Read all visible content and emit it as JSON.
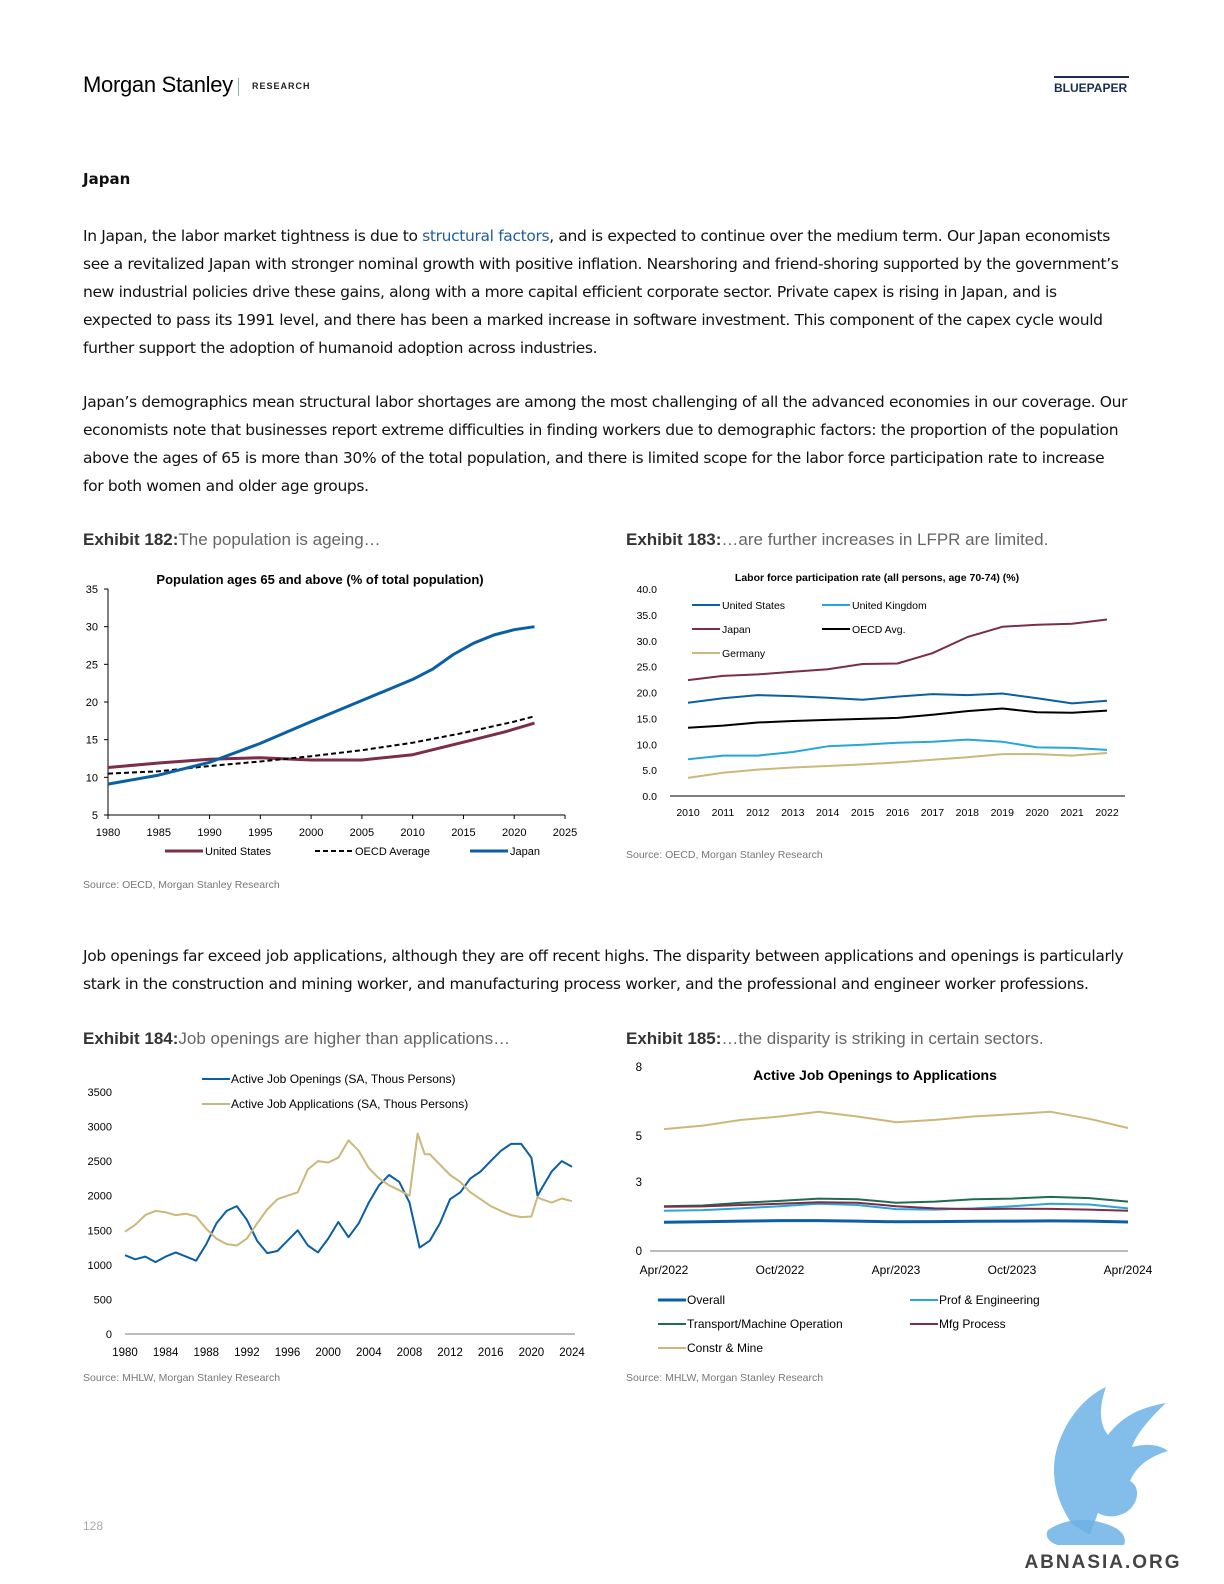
{
  "header": {
    "brand": "Morgan Stanley",
    "section": "RESEARCH",
    "doc_type": "BLUEPAPER"
  },
  "page_number": "128",
  "heading": "Japan",
  "para1": {
    "pre": "In Japan, the labor market tightness is due to ",
    "link": "structural factors",
    "post": ", and is expected to continue over the medium term. Our Japan economists see a revitalized Japan with stronger nominal growth with positive inflation. Nearshoring and friend-shoring supported by the government’s new industrial policies drive these gains, along with a more capital efficient corporate sector. Private capex is rising in Japan, and is expected to pass its 1991 level, and there has been a marked increase in software investment. This component of the capex cycle would further support the adoption of humanoid adoption across industries."
  },
  "para2": "Japan’s demographics mean structural labor shortages are among the most challenging of all the advanced economies in our coverage. Our economists note that businesses report extreme difficulties in finding workers due to demographic factors: the proportion of the population above the ages of 65 is more than 30% of the total population, and there is limited scope for the labor force participation rate to increase for both women and older age groups.",
  "para3": "Job openings far exceed job applications, although they are off recent highs. The disparity between applications and openings is particularly stark in the construction and mining worker, and manufacturing process worker, and the professional and engineer worker professions.",
  "exhibits": [
    {
      "label": "Exhibit 182:",
      "caption": "The population is ageing…",
      "source": "Source: OECD, Morgan Stanley Research"
    },
    {
      "label": "Exhibit 183:",
      "caption": "…are further increases in LFPR are limited.",
      "source": "Source: OECD, Morgan Stanley Research"
    },
    {
      "label": "Exhibit 184:",
      "caption": "Job openings are higher than applications…",
      "source": "Source: MHLW, Morgan Stanley Research"
    },
    {
      "label": "Exhibit 185:",
      "caption": "…the disparity is striking in certain sectors.",
      "source": "Source: MHLW, Morgan Stanley Research"
    }
  ],
  "watermark": "ABNASIA.ORG",
  "colors": {
    "navy": "#1a2e55",
    "us": "#7b2d4a",
    "japan": "#0b5fa5",
    "oecd": "#000000",
    "uk": "#29a6d8",
    "germany": "#cbb87a",
    "transport": "#1f6b54",
    "link": "#1f5fa0"
  },
  "chart_data": [
    {
      "type": "line",
      "title": "Population ages 65 and above (% of total population)",
      "xlim": [
        1980,
        2025
      ],
      "ylim": [
        5,
        35
      ],
      "xticks": [
        "1980",
        "1985",
        "1990",
        "1995",
        "2000",
        "2005",
        "2010",
        "2015",
        "2020",
        "2025"
      ],
      "yticks": [
        "5",
        "10",
        "15",
        "20",
        "25",
        "30",
        "35"
      ],
      "legend_position": "bottom",
      "series": [
        {
          "name": "United States",
          "color": "#7b2d4a",
          "dash": "none",
          "width": 3,
          "x": [
            1980,
            1985,
            1990,
            1995,
            2000,
            2005,
            2010,
            2013,
            2016,
            2019,
            2022
          ],
          "y": [
            11.3,
            11.9,
            12.4,
            12.6,
            12.3,
            12.3,
            13.0,
            14.0,
            15.0,
            16.0,
            17.2
          ]
        },
        {
          "name": "OECD Average",
          "color": "#000000",
          "dash": "5,3",
          "width": 2,
          "x": [
            1980,
            1985,
            1990,
            1995,
            2000,
            2005,
            2010,
            2015,
            2020,
            2022
          ],
          "y": [
            10.5,
            10.8,
            11.5,
            12.1,
            12.8,
            13.6,
            14.6,
            15.9,
            17.4,
            18.1
          ]
        },
        {
          "name": "Japan",
          "color": "#0b5fa5",
          "dash": "none",
          "width": 3,
          "x": [
            1980,
            1985,
            1990,
            1995,
            2000,
            2005,
            2010,
            2012,
            2014,
            2016,
            2018,
            2020,
            2022
          ],
          "y": [
            9.1,
            10.3,
            12.0,
            14.5,
            17.4,
            20.2,
            23.0,
            24.4,
            26.3,
            27.8,
            28.9,
            29.6,
            30.0
          ]
        }
      ]
    },
    {
      "type": "line",
      "title": "Labor force participation rate (all persons, age 70-74) (%)",
      "xlim": [
        2010,
        2022
      ],
      "ylim": [
        0,
        40
      ],
      "xticks": [
        "2010",
        "2011",
        "2012",
        "2013",
        "2014",
        "2015",
        "2016",
        "2017",
        "2018",
        "2019",
        "2020",
        "2021",
        "2022"
      ],
      "yticks": [
        "0.0",
        "5.0",
        "10.0",
        "15.0",
        "20.0",
        "25.0",
        "30.0",
        "35.0",
        "40.0"
      ],
      "legend_position": "top-left",
      "x": [
        2010,
        2011,
        2012,
        2013,
        2014,
        2015,
        2016,
        2017,
        2018,
        2019,
        2020,
        2021,
        2022
      ],
      "series": [
        {
          "name": "United States",
          "color": "#0b5fa5",
          "y": [
            18.0,
            18.9,
            19.5,
            19.3,
            19.0,
            18.6,
            19.2,
            19.7,
            19.5,
            19.8,
            18.9,
            17.9,
            18.4
          ]
        },
        {
          "name": "United Kingdom",
          "color": "#29a6d8",
          "y": [
            7.1,
            7.8,
            7.8,
            8.5,
            9.6,
            9.9,
            10.3,
            10.5,
            10.9,
            10.5,
            9.4,
            9.3,
            8.9
          ]
        },
        {
          "name": "Japan",
          "color": "#7b2d4a",
          "y": [
            22.4,
            23.2,
            23.5,
            24.0,
            24.5,
            25.5,
            25.6,
            27.6,
            30.7,
            32.7,
            33.1,
            33.3,
            34.1
          ]
        },
        {
          "name": "OECD Avg.",
          "color": "#000000",
          "y": [
            13.2,
            13.6,
            14.2,
            14.5,
            14.7,
            14.9,
            15.1,
            15.7,
            16.4,
            16.9,
            16.2,
            16.1,
            16.5
          ]
        },
        {
          "name": "Germany",
          "color": "#cbb87a",
          "y": [
            3.5,
            4.5,
            5.1,
            5.5,
            5.8,
            6.1,
            6.5,
            7.0,
            7.5,
            8.1,
            8.1,
            7.8,
            8.3
          ]
        }
      ]
    },
    {
      "type": "line",
      "xlim": [
        1980,
        2024
      ],
      "ylim": [
        0,
        3500
      ],
      "xticks": [
        "1980",
        "1984",
        "1988",
        "1992",
        "1996",
        "2000",
        "2004",
        "2008",
        "2012",
        "2016",
        "2020",
        "2024"
      ],
      "yticks": [
        "0",
        "500",
        "1000",
        "1500",
        "2000",
        "2500",
        "3000",
        "3500"
      ],
      "legend_position": "top",
      "series": [
        {
          "name": "Active Job Openings (SA, Thous Persons)",
          "color": "#0b5fa5",
          "x": [
            1980,
            1981,
            1982,
            1983,
            1984,
            1985,
            1986,
            1987,
            1988,
            1989,
            1990,
            1991,
            1992,
            1993,
            1994,
            1995,
            1996,
            1997,
            1998,
            1999,
            2000,
            2001,
            2002,
            2003,
            2004,
            2005,
            2006,
            2007,
            2008,
            2009,
            2010,
            2011,
            2012,
            2013,
            2014,
            2015,
            2016,
            2017,
            2018,
            2019,
            2020,
            2020.6,
            2021,
            2022,
            2023,
            2024
          ],
          "y": [
            1140,
            1080,
            1120,
            1040,
            1120,
            1180,
            1120,
            1060,
            1300,
            1600,
            1780,
            1850,
            1650,
            1350,
            1170,
            1200,
            1350,
            1500,
            1280,
            1180,
            1380,
            1620,
            1400,
            1600,
            1900,
            2150,
            2300,
            2200,
            1900,
            1250,
            1350,
            1600,
            1950,
            2050,
            2250,
            2350,
            2500,
            2650,
            2750,
            2750,
            2550,
            2000,
            2100,
            2350,
            2500,
            2420
          ]
        },
        {
          "name": "Active Job Applications (SA, Thous Persons)",
          "color": "#cbb87a",
          "x": [
            1980,
            1981,
            1982,
            1983,
            1984,
            1985,
            1986,
            1987,
            1988,
            1989,
            1990,
            1991,
            1992,
            1993,
            1994,
            1995,
            1996,
            1997,
            1998,
            1999,
            2000,
            2001,
            2002,
            2003,
            2004,
            2005,
            2006,
            2007,
            2008,
            2008.8,
            2009.5,
            2010,
            2011,
            2012,
            2013,
            2014,
            2015,
            2016,
            2017,
            2018,
            2019,
            2020,
            2020.6,
            2021,
            2022,
            2023,
            2024
          ],
          "y": [
            1480,
            1580,
            1720,
            1780,
            1760,
            1720,
            1740,
            1700,
            1520,
            1380,
            1300,
            1280,
            1380,
            1600,
            1800,
            1950,
            2000,
            2050,
            2380,
            2500,
            2480,
            2550,
            2800,
            2650,
            2400,
            2250,
            2150,
            2080,
            2000,
            2900,
            2600,
            2600,
            2450,
            2300,
            2200,
            2050,
            1950,
            1850,
            1780,
            1720,
            1690,
            1700,
            1980,
            1950,
            1900,
            1960,
            1920
          ]
        }
      ]
    },
    {
      "type": "line",
      "title": "Active Job Openings to Applications",
      "ylim": [
        0,
        8
      ],
      "xticks": [
        "Apr/2022",
        "Oct/2022",
        "Apr/2023",
        "Oct/2023",
        "Apr/2024"
      ],
      "yticks": [
        "0",
        "3",
        "5",
        "8"
      ],
      "legend_position": "bottom",
      "x": [
        "Apr/2022",
        "Jun/2022",
        "Aug/2022",
        "Oct/2022",
        "Dec/2022",
        "Feb/2023",
        "Apr/2023",
        "Jun/2023",
        "Aug/2023",
        "Oct/2023",
        "Dec/2023",
        "Feb/2024",
        "Apr/2024"
      ],
      "series": [
        {
          "name": "Overall",
          "color": "#0b5fa5",
          "width": 3,
          "y": [
            1.25,
            1.27,
            1.3,
            1.32,
            1.32,
            1.3,
            1.27,
            1.28,
            1.29,
            1.3,
            1.31,
            1.3,
            1.26
          ]
        },
        {
          "name": "Prof & Engineering",
          "color": "#29a6d8",
          "width": 2,
          "y": [
            1.75,
            1.78,
            1.85,
            1.95,
            2.05,
            2.0,
            1.82,
            1.8,
            1.85,
            1.95,
            2.05,
            2.02,
            1.85
          ]
        },
        {
          "name": "Transport/Machine Operation",
          "color": "#1f6b54",
          "width": 2,
          "y": [
            1.95,
            1.98,
            2.1,
            2.18,
            2.28,
            2.25,
            2.1,
            2.15,
            2.25,
            2.28,
            2.35,
            2.3,
            2.15
          ]
        },
        {
          "name": "Mfg Process",
          "color": "#7b2d4a",
          "width": 2,
          "y": [
            1.92,
            1.94,
            2.0,
            2.05,
            2.12,
            2.1,
            1.95,
            1.85,
            1.82,
            1.84,
            1.83,
            1.8,
            1.75
          ]
        },
        {
          "name": "Constr & Mine",
          "color": "#cbb87a",
          "width": 2,
          "y": [
            5.3,
            5.45,
            5.7,
            5.85,
            6.05,
            5.85,
            5.6,
            5.7,
            5.85,
            5.95,
            6.05,
            5.75,
            5.35
          ]
        }
      ]
    }
  ]
}
